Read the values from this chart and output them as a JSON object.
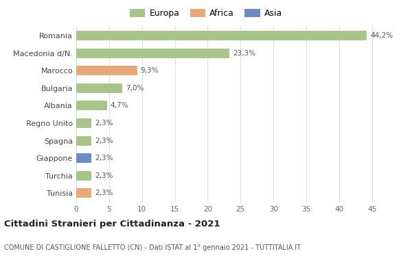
{
  "categories": [
    "Tunisia",
    "Turchia",
    "Giappone",
    "Spagna",
    "Regno Unito",
    "Albania",
    "Bulgaria",
    "Marocco",
    "Macedonia d/N.",
    "Romania"
  ],
  "values": [
    2.3,
    2.3,
    2.3,
    2.3,
    2.3,
    4.7,
    7.0,
    9.3,
    23.3,
    44.2
  ],
  "labels": [
    "2,3%",
    "2,3%",
    "2,3%",
    "2,3%",
    "2,3%",
    "4,7%",
    "7,0%",
    "9,3%",
    "23,3%",
    "44,2%"
  ],
  "colors": [
    "#e8a97a",
    "#a8c48a",
    "#6b8dc4",
    "#a8c48a",
    "#a8c48a",
    "#a8c48a",
    "#a8c48a",
    "#e8a97a",
    "#a8c48a",
    "#a8c48a"
  ],
  "legend_labels": [
    "Europa",
    "Africa",
    "Asia"
  ],
  "legend_colors": [
    "#a8c48a",
    "#e8a97a",
    "#6b8dc4"
  ],
  "title": "Cittadini Stranieri per Cittadinanza - 2021",
  "subtitle": "COMUNE DI CASTIGLIONE FALLETTO (CN) - Dati ISTAT al 1° gennaio 2021 - TUTTITALIA.IT",
  "xlim": [
    0,
    47
  ],
  "xticks": [
    0,
    5,
    10,
    15,
    20,
    25,
    30,
    35,
    40,
    45
  ],
  "background_color": "#ffffff",
  "grid_color": "#dddddd",
  "bar_height": 0.55
}
